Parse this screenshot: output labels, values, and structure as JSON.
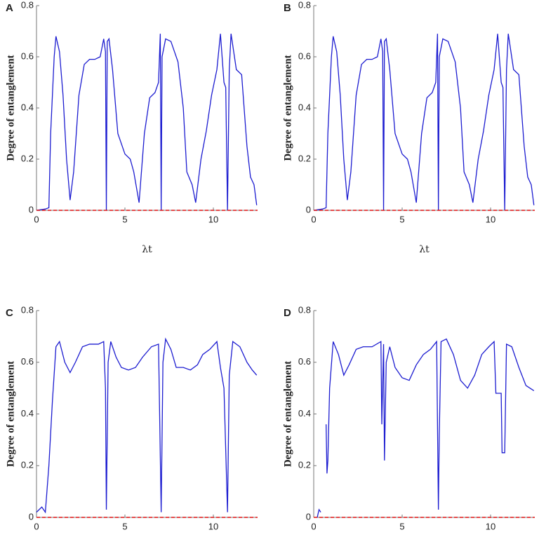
{
  "chart_data": [
    {
      "type": "line",
      "panel": "A",
      "y_label": "Degree of entanglement",
      "x_label": "λt",
      "xlim": [
        0,
        12.5
      ],
      "xticks": [
        0,
        5,
        10
      ],
      "ylim": [
        0,
        0.8
      ],
      "yticks": [
        0,
        0.2,
        0.4,
        0.6,
        0.8
      ],
      "series": [
        {
          "color": "#1c1cd0",
          "dashed": false,
          "x": [
            0,
            0.5,
            0.7,
            0.8,
            0.9,
            1.0,
            1.1,
            1.3,
            1.5,
            1.7,
            1.9,
            2.1,
            2.4,
            2.7,
            3.0,
            3.3,
            3.6,
            3.8,
            3.9,
            3.95,
            4.0,
            4.1,
            4.3,
            4.6,
            5.0,
            5.3,
            5.5,
            5.8,
            6.1,
            6.4,
            6.7,
            6.9,
            7.0,
            7.05,
            7.1,
            7.3,
            7.6,
            8.0,
            8.3,
            8.5,
            8.8,
            9.0,
            9.3,
            9.6,
            9.9,
            10.2,
            10.4,
            10.6,
            10.7,
            10.8,
            10.9,
            11.0,
            11.3,
            11.6,
            11.9,
            12.1,
            12.3,
            12.45
          ],
          "values": [
            0,
            0.005,
            0.01,
            0.3,
            0.45,
            0.6,
            0.68,
            0.62,
            0.45,
            0.2,
            0.04,
            0.15,
            0.45,
            0.57,
            0.59,
            0.59,
            0.6,
            0.67,
            0.62,
            0,
            0.66,
            0.67,
            0.55,
            0.3,
            0.22,
            0.2,
            0.15,
            0.03,
            0.3,
            0.44,
            0.46,
            0.5,
            0.69,
            0,
            0.6,
            0.67,
            0.66,
            0.58,
            0.4,
            0.15,
            0.1,
            0.03,
            0.2,
            0.31,
            0.45,
            0.55,
            0.69,
            0.5,
            0.48,
            0,
            0.55,
            0.69,
            0.55,
            0.53,
            0.25,
            0.13,
            0.1,
            0.02
          ]
        },
        {
          "color": "#e01010",
          "dashed": true,
          "x": [
            0,
            12.5
          ],
          "values": [
            0,
            0
          ]
        }
      ]
    },
    {
      "type": "line",
      "panel": "B",
      "y_label": "Degree of entanglement",
      "x_label": "λt",
      "xlim": [
        0,
        12.5
      ],
      "xticks": [
        0,
        5,
        10
      ],
      "ylim": [
        0,
        0.8
      ],
      "yticks": [
        0,
        0.2,
        0.4,
        0.6,
        0.8
      ],
      "series": [
        {
          "color": "#1c1cd0",
          "dashed": false,
          "x": [
            0,
            0.5,
            0.7,
            0.8,
            0.9,
            1.0,
            1.1,
            1.3,
            1.5,
            1.7,
            1.9,
            2.1,
            2.4,
            2.7,
            3.0,
            3.3,
            3.6,
            3.8,
            3.9,
            3.95,
            4.0,
            4.1,
            4.3,
            4.6,
            5.0,
            5.3,
            5.5,
            5.8,
            6.1,
            6.4,
            6.7,
            6.9,
            7.0,
            7.05,
            7.1,
            7.3,
            7.6,
            8.0,
            8.3,
            8.5,
            8.8,
            9.0,
            9.3,
            9.6,
            9.9,
            10.2,
            10.4,
            10.6,
            10.7,
            10.8,
            10.9,
            11.0,
            11.3,
            11.6,
            11.9,
            12.1,
            12.3,
            12.45
          ],
          "values": [
            0,
            0.005,
            0.01,
            0.3,
            0.45,
            0.6,
            0.68,
            0.62,
            0.45,
            0.2,
            0.04,
            0.15,
            0.45,
            0.57,
            0.59,
            0.59,
            0.6,
            0.67,
            0.62,
            0,
            0.66,
            0.67,
            0.55,
            0.3,
            0.22,
            0.2,
            0.15,
            0.03,
            0.3,
            0.44,
            0.46,
            0.5,
            0.69,
            0,
            0.6,
            0.67,
            0.66,
            0.58,
            0.4,
            0.15,
            0.1,
            0.03,
            0.2,
            0.31,
            0.45,
            0.55,
            0.69,
            0.5,
            0.48,
            0,
            0.55,
            0.69,
            0.55,
            0.53,
            0.25,
            0.13,
            0.1,
            0.02
          ]
        },
        {
          "color": "#e01010",
          "dashed": true,
          "x": [
            0,
            12.5
          ],
          "values": [
            0,
            0
          ]
        }
      ]
    },
    {
      "type": "line",
      "panel": "C",
      "y_label": "Degree of entanglement",
      "xlim": [
        0,
        12.5
      ],
      "xticks": [
        0,
        5,
        10
      ],
      "ylim": [
        0,
        0.8
      ],
      "yticks": [
        0,
        0.2,
        0.4,
        0.6,
        0.8
      ],
      "series": [
        {
          "color": "#1c1cd0",
          "dashed": false,
          "x": [
            0,
            0.3,
            0.5,
            0.7,
            0.9,
            1.1,
            1.3,
            1.6,
            1.9,
            2.2,
            2.6,
            3.0,
            3.5,
            3.8,
            3.9,
            3.95,
            4.05,
            4.2,
            4.5,
            4.8,
            5.2,
            5.6,
            6.0,
            6.5,
            6.9,
            7.05,
            7.15,
            7.3,
            7.6,
            7.9,
            8.3,
            8.7,
            9.1,
            9.4,
            9.8,
            10.2,
            10.4,
            10.6,
            10.8,
            10.9,
            11.1,
            11.5,
            11.9,
            12.2,
            12.45
          ],
          "values": [
            0.02,
            0.04,
            0.02,
            0.2,
            0.45,
            0.66,
            0.68,
            0.6,
            0.56,
            0.6,
            0.66,
            0.67,
            0.67,
            0.68,
            0.5,
            0.03,
            0.6,
            0.68,
            0.62,
            0.58,
            0.57,
            0.58,
            0.62,
            0.66,
            0.67,
            0.02,
            0.6,
            0.69,
            0.65,
            0.58,
            0.58,
            0.57,
            0.59,
            0.63,
            0.65,
            0.68,
            0.58,
            0.5,
            0.02,
            0.55,
            0.68,
            0.66,
            0.6,
            0.57,
            0.55
          ]
        },
        {
          "color": "#e01010",
          "dashed": true,
          "x": [
            0,
            12.5
          ],
          "values": [
            0,
            0
          ]
        }
      ]
    },
    {
      "type": "line",
      "panel": "D",
      "y_label": "Degree of entanglement",
      "xlim": [
        0,
        12.5
      ],
      "xticks": [
        0,
        5,
        10
      ],
      "ylim": [
        0,
        0.8
      ],
      "yticks": [
        0,
        0.2,
        0.4,
        0.6,
        0.8
      ],
      "series": [
        {
          "color": "#1c1cd0",
          "dashed": false,
          "x": [
            0.2,
            0.3,
            0.4,
            0.55,
            0.7,
            0.75,
            0.8,
            0.9,
            1.1,
            1.4,
            1.7,
            2.0,
            2.4,
            2.8,
            3.3,
            3.8,
            3.85,
            3.95,
            4.0,
            4.1,
            4.3,
            4.6,
            5.0,
            5.4,
            5.8,
            6.2,
            6.6,
            6.95,
            7.05,
            7.1,
            7.2,
            7.5,
            7.9,
            8.3,
            8.7,
            9.1,
            9.5,
            9.9,
            10.2,
            10.3,
            10.6,
            10.65,
            10.8,
            10.9,
            11.2,
            11.6,
            12.0,
            12.45
          ],
          "values": [
            0,
            0.03,
            0.02,
            null,
            0.36,
            0.17,
            0.22,
            0.5,
            0.68,
            0.63,
            0.55,
            0.59,
            0.65,
            0.66,
            0.66,
            0.68,
            0.36,
            0.67,
            0.22,
            0.6,
            0.66,
            0.58,
            0.54,
            0.53,
            0.59,
            0.63,
            0.65,
            0.68,
            0.03,
            0.32,
            0.68,
            0.69,
            0.63,
            0.53,
            0.5,
            0.55,
            0.63,
            0.66,
            0.68,
            0.48,
            0.48,
            0.25,
            0.25,
            0.67,
            0.66,
            0.58,
            0.51,
            0.49
          ]
        },
        {
          "color": "#e01010",
          "dashed": true,
          "x": [
            0,
            12.5
          ],
          "values": [
            0,
            0
          ]
        }
      ]
    }
  ]
}
